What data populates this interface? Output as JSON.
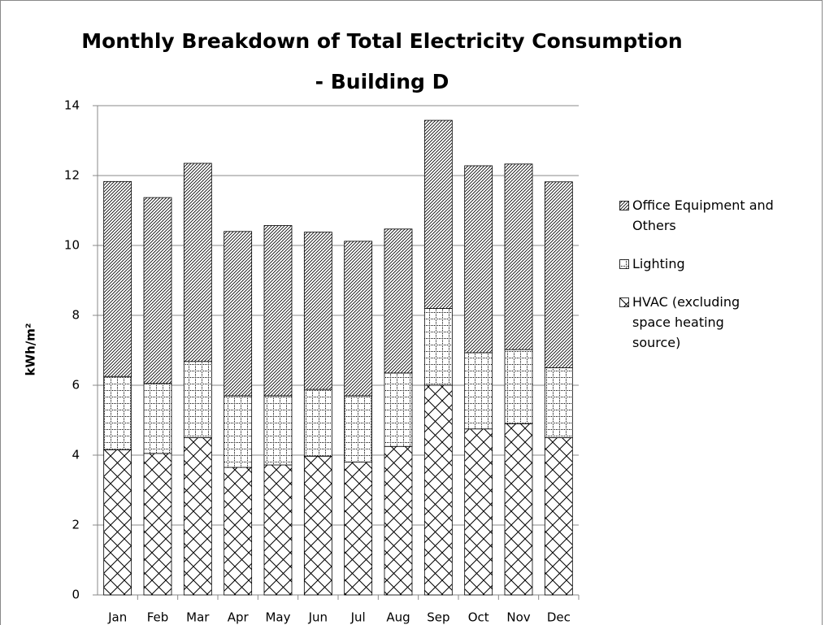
{
  "chart_data": {
    "type": "stacked_bar",
    "title": "Monthly Breakdown of Total Electricity Consumption - Building D",
    "y_label": "kWh/m²",
    "categories": [
      "Jan",
      "Feb",
      "Mar",
      "Apr",
      "May",
      "Jun",
      "Jul",
      "Aug",
      "Sep",
      "Oct",
      "Nov",
      "Dec"
    ],
    "series": [
      {
        "name": "HVAC (excluding space heating source)",
        "color": "#000000",
        "values": [
          4.15,
          4.05,
          4.5,
          3.65,
          3.72,
          3.97,
          3.8,
          4.25,
          6.0,
          4.75,
          4.9,
          4.5
        ]
      },
      {
        "name": "Lighting",
        "color": "#000000",
        "values": [
          2.1,
          2.0,
          2.18,
          2.05,
          1.98,
          1.91,
          1.9,
          2.1,
          2.2,
          2.18,
          2.12,
          2.0
        ]
      },
      {
        "name": "Office Equipment and Others",
        "color": "#000000",
        "values": [
          5.58,
          5.32,
          5.67,
          4.7,
          4.87,
          4.5,
          4.42,
          4.12,
          5.38,
          5.35,
          5.31,
          5.32
        ]
      }
    ],
    "ylim": [
      0,
      14
    ],
    "yticks": [
      0,
      2,
      4,
      6,
      8,
      10,
      12,
      14
    ],
    "grid": true
  }
}
